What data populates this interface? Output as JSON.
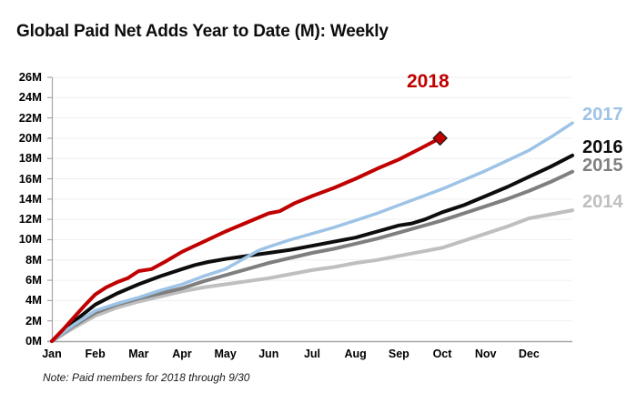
{
  "title": "Global Paid Net Adds Year to Date (M): Weekly",
  "note": "Note: Paid members for 2018 through 9/30",
  "colors": {
    "axis": "#a6a6a6",
    "gridline": "#efefef",
    "tick_label": "#000000",
    "diamond_outline": "#1a1a1a"
  },
  "chart_data": {
    "type": "line",
    "title": "Global Paid Net Adds Year to Date (M): Weekly",
    "xlabel": "",
    "ylabel": "",
    "grid": true,
    "x_axis": {
      "labels": [
        "Jan",
        "Feb",
        "Mar",
        "Apr",
        "May",
        "Jun",
        "Jul",
        "Aug",
        "Sep",
        "Oct",
        "Nov",
        "Dec"
      ],
      "unit": "month-of-year, weekly resolution"
    },
    "y_axis": {
      "min": 0,
      "max": 26,
      "step": 2,
      "labels": [
        "0M",
        "2M",
        "4M",
        "6M",
        "8M",
        "10M",
        "12M",
        "14M",
        "16M",
        "18M",
        "20M",
        "22M",
        "24M",
        "26M"
      ]
    },
    "legend_position": "right-of-lines",
    "series": [
      {
        "name": "2018",
        "color": "#c00000",
        "line_width": 4,
        "end_marker": "diamond",
        "end_value": 20.0,
        "points": [
          [
            0,
            0
          ],
          [
            0.25,
            1.1
          ],
          [
            0.5,
            2.3
          ],
          [
            0.75,
            3.5
          ],
          [
            1,
            4.6
          ],
          [
            1.25,
            5.3
          ],
          [
            1.5,
            5.8
          ],
          [
            1.75,
            6.2
          ],
          [
            2,
            6.9
          ],
          [
            2.3,
            7.1
          ],
          [
            2.6,
            7.8
          ],
          [
            3,
            8.8
          ],
          [
            3.5,
            9.8
          ],
          [
            4,
            10.8
          ],
          [
            4.5,
            11.7
          ],
          [
            5,
            12.6
          ],
          [
            5.25,
            12.8
          ],
          [
            5.6,
            13.6
          ],
          [
            6,
            14.3
          ],
          [
            6.5,
            15.1
          ],
          [
            7,
            16.0
          ],
          [
            7.5,
            17.0
          ],
          [
            8,
            17.9
          ],
          [
            8.5,
            19.0
          ],
          [
            8.95,
            20.0
          ]
        ]
      },
      {
        "name": "2017",
        "color": "#9dc3e6",
        "line_width": 3.5,
        "end_marker": "none",
        "end_value": 21.5,
        "points": [
          [
            0,
            0
          ],
          [
            0.5,
            1.6
          ],
          [
            1,
            3.0
          ],
          [
            1.5,
            3.7
          ],
          [
            2,
            4.3
          ],
          [
            2.5,
            5.0
          ],
          [
            3,
            5.6
          ],
          [
            3.5,
            6.4
          ],
          [
            4,
            7.1
          ],
          [
            4.5,
            8.3
          ],
          [
            4.75,
            8.9
          ],
          [
            5,
            9.3
          ],
          [
            5.5,
            10.0
          ],
          [
            6,
            10.6
          ],
          [
            6.5,
            11.2
          ],
          [
            7,
            11.9
          ],
          [
            7.5,
            12.6
          ],
          [
            8,
            13.4
          ],
          [
            8.5,
            14.2
          ],
          [
            9,
            15.0
          ],
          [
            9.5,
            15.9
          ],
          [
            10,
            16.8
          ],
          [
            10.5,
            17.8
          ],
          [
            11,
            18.8
          ],
          [
            11.5,
            20.1
          ],
          [
            12,
            21.5
          ]
        ]
      },
      {
        "name": "2016",
        "color": "#0d0d0d",
        "line_width": 4,
        "end_marker": "none",
        "end_value": 18.3,
        "points": [
          [
            0,
            0
          ],
          [
            0.5,
            1.9
          ],
          [
            1,
            3.6
          ],
          [
            1.5,
            4.7
          ],
          [
            2,
            5.6
          ],
          [
            2.5,
            6.4
          ],
          [
            3,
            7.1
          ],
          [
            3.3,
            7.5
          ],
          [
            3.6,
            7.8
          ],
          [
            4,
            8.1
          ],
          [
            4.5,
            8.4
          ],
          [
            5,
            8.7
          ],
          [
            5.5,
            9.0
          ],
          [
            6,
            9.4
          ],
          [
            6.5,
            9.8
          ],
          [
            7,
            10.2
          ],
          [
            7.5,
            10.8
          ],
          [
            8,
            11.4
          ],
          [
            8.3,
            11.6
          ],
          [
            8.6,
            12.0
          ],
          [
            9,
            12.7
          ],
          [
            9.5,
            13.4
          ],
          [
            10,
            14.3
          ],
          [
            10.5,
            15.2
          ],
          [
            11,
            16.2
          ],
          [
            11.5,
            17.2
          ],
          [
            12,
            18.3
          ]
        ]
      },
      {
        "name": "2015",
        "color": "#7f7f7f",
        "line_width": 4,
        "end_marker": "none",
        "end_value": 16.7,
        "points": [
          [
            0,
            0
          ],
          [
            0.5,
            1.5
          ],
          [
            1,
            2.8
          ],
          [
            1.5,
            3.6
          ],
          [
            2,
            4.2
          ],
          [
            2.5,
            4.7
          ],
          [
            3,
            5.2
          ],
          [
            3.5,
            5.9
          ],
          [
            4,
            6.5
          ],
          [
            4.5,
            7.1
          ],
          [
            5,
            7.7
          ],
          [
            5.5,
            8.2
          ],
          [
            6,
            8.7
          ],
          [
            6.5,
            9.1
          ],
          [
            7,
            9.6
          ],
          [
            7.5,
            10.1
          ],
          [
            8,
            10.7
          ],
          [
            8.5,
            11.3
          ],
          [
            9,
            11.9
          ],
          [
            9.5,
            12.6
          ],
          [
            10,
            13.3
          ],
          [
            10.5,
            14.0
          ],
          [
            11,
            14.8
          ],
          [
            11.5,
            15.7
          ],
          [
            12,
            16.7
          ]
        ]
      },
      {
        "name": "2014",
        "color": "#bfbfbf",
        "line_width": 4,
        "end_marker": "none",
        "end_value": 12.9,
        "points": [
          [
            0,
            0
          ],
          [
            0.5,
            1.3
          ],
          [
            1,
            2.5
          ],
          [
            1.5,
            3.3
          ],
          [
            2,
            3.9
          ],
          [
            2.5,
            4.4
          ],
          [
            3,
            4.9
          ],
          [
            3.5,
            5.3
          ],
          [
            4,
            5.6
          ],
          [
            4.5,
            5.9
          ],
          [
            5,
            6.2
          ],
          [
            5.5,
            6.6
          ],
          [
            6,
            7.0
          ],
          [
            6.5,
            7.3
          ],
          [
            7,
            7.7
          ],
          [
            7.5,
            8.0
          ],
          [
            8,
            8.4
          ],
          [
            8.5,
            8.8
          ],
          [
            9,
            9.2
          ],
          [
            9.5,
            9.9
          ],
          [
            10,
            10.6
          ],
          [
            10.5,
            11.3
          ],
          [
            11,
            12.1
          ],
          [
            11.5,
            12.5
          ],
          [
            12,
            12.9
          ]
        ]
      }
    ]
  }
}
